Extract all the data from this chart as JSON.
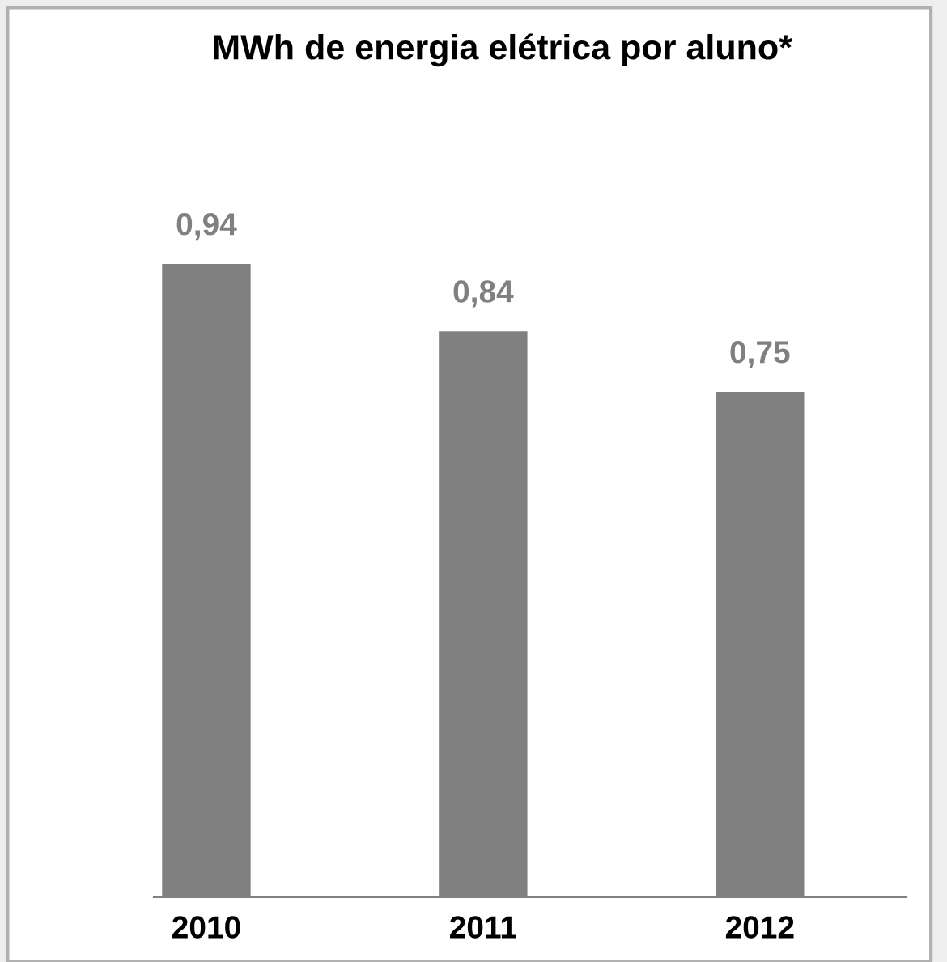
{
  "chart_data": {
    "type": "bar",
    "title": "MWh de energia elétrica por aluno*",
    "categories": [
      "2010",
      "2011",
      "2012"
    ],
    "values": [
      0.94,
      0.84,
      0.75
    ],
    "value_labels": [
      "0,94",
      "0,84",
      "0,75"
    ],
    "color": "#808080",
    "grid": false,
    "legend": false
  }
}
